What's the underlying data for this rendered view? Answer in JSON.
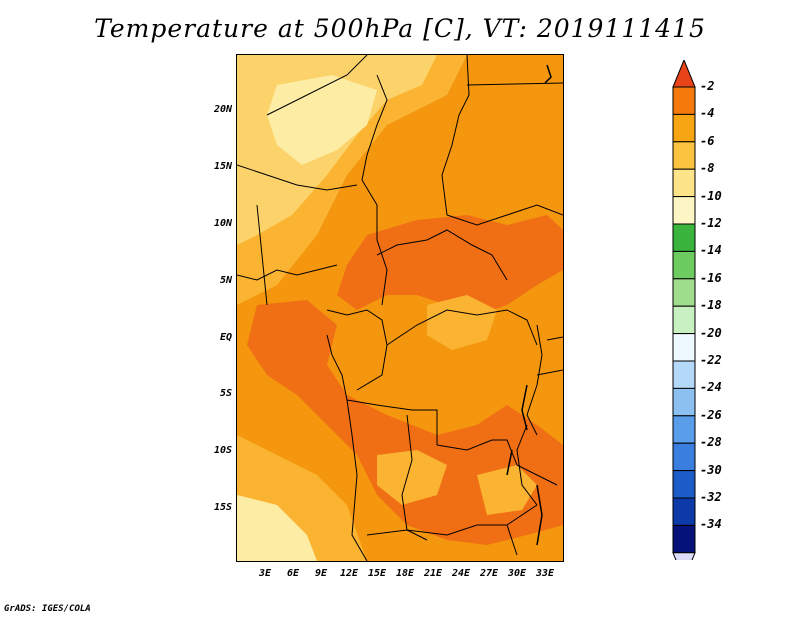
{
  "title": "Temperature at 500hPa [C], VT: 2019111415",
  "credit": "GrADS: IGES/COLA",
  "axes": {
    "y_ticks": [
      "20N",
      "15N",
      "10N",
      "5N",
      "EQ",
      "5S",
      "10S",
      "15S"
    ],
    "x_ticks": [
      "3E",
      "6E",
      "9E",
      "12E",
      "15E",
      "18E",
      "21E",
      "24E",
      "27E",
      "30E",
      "33E"
    ]
  },
  "colorbar": {
    "labels": [
      "-2",
      "-4",
      "-6",
      "-8",
      "-10",
      "-12",
      "-14",
      "-16",
      "-18",
      "-20",
      "-22",
      "-24",
      "-26",
      "-28",
      "-30",
      "-32",
      "-34"
    ],
    "colors": [
      "#e8441a",
      "#f47a0c",
      "#f8a514",
      "#fbc340",
      "#fde488",
      "#fdf6c4",
      "#3ab43c",
      "#6ccc60",
      "#9edd8c",
      "#c8f0c0",
      "#eef8ff",
      "#b4d8f8",
      "#8cc0f0",
      "#5a9de8",
      "#3a7ee0",
      "#1e5cc8",
      "#0c3aa8",
      "#04127a",
      "#dcdcf8"
    ]
  },
  "colors": {
    "deep_orange": "#f06e14",
    "orange": "#f5960f",
    "light_orange": "#fab432",
    "yellow": "#fcd36a",
    "pale_yellow": "#fdeca4",
    "border": "#000000"
  }
}
